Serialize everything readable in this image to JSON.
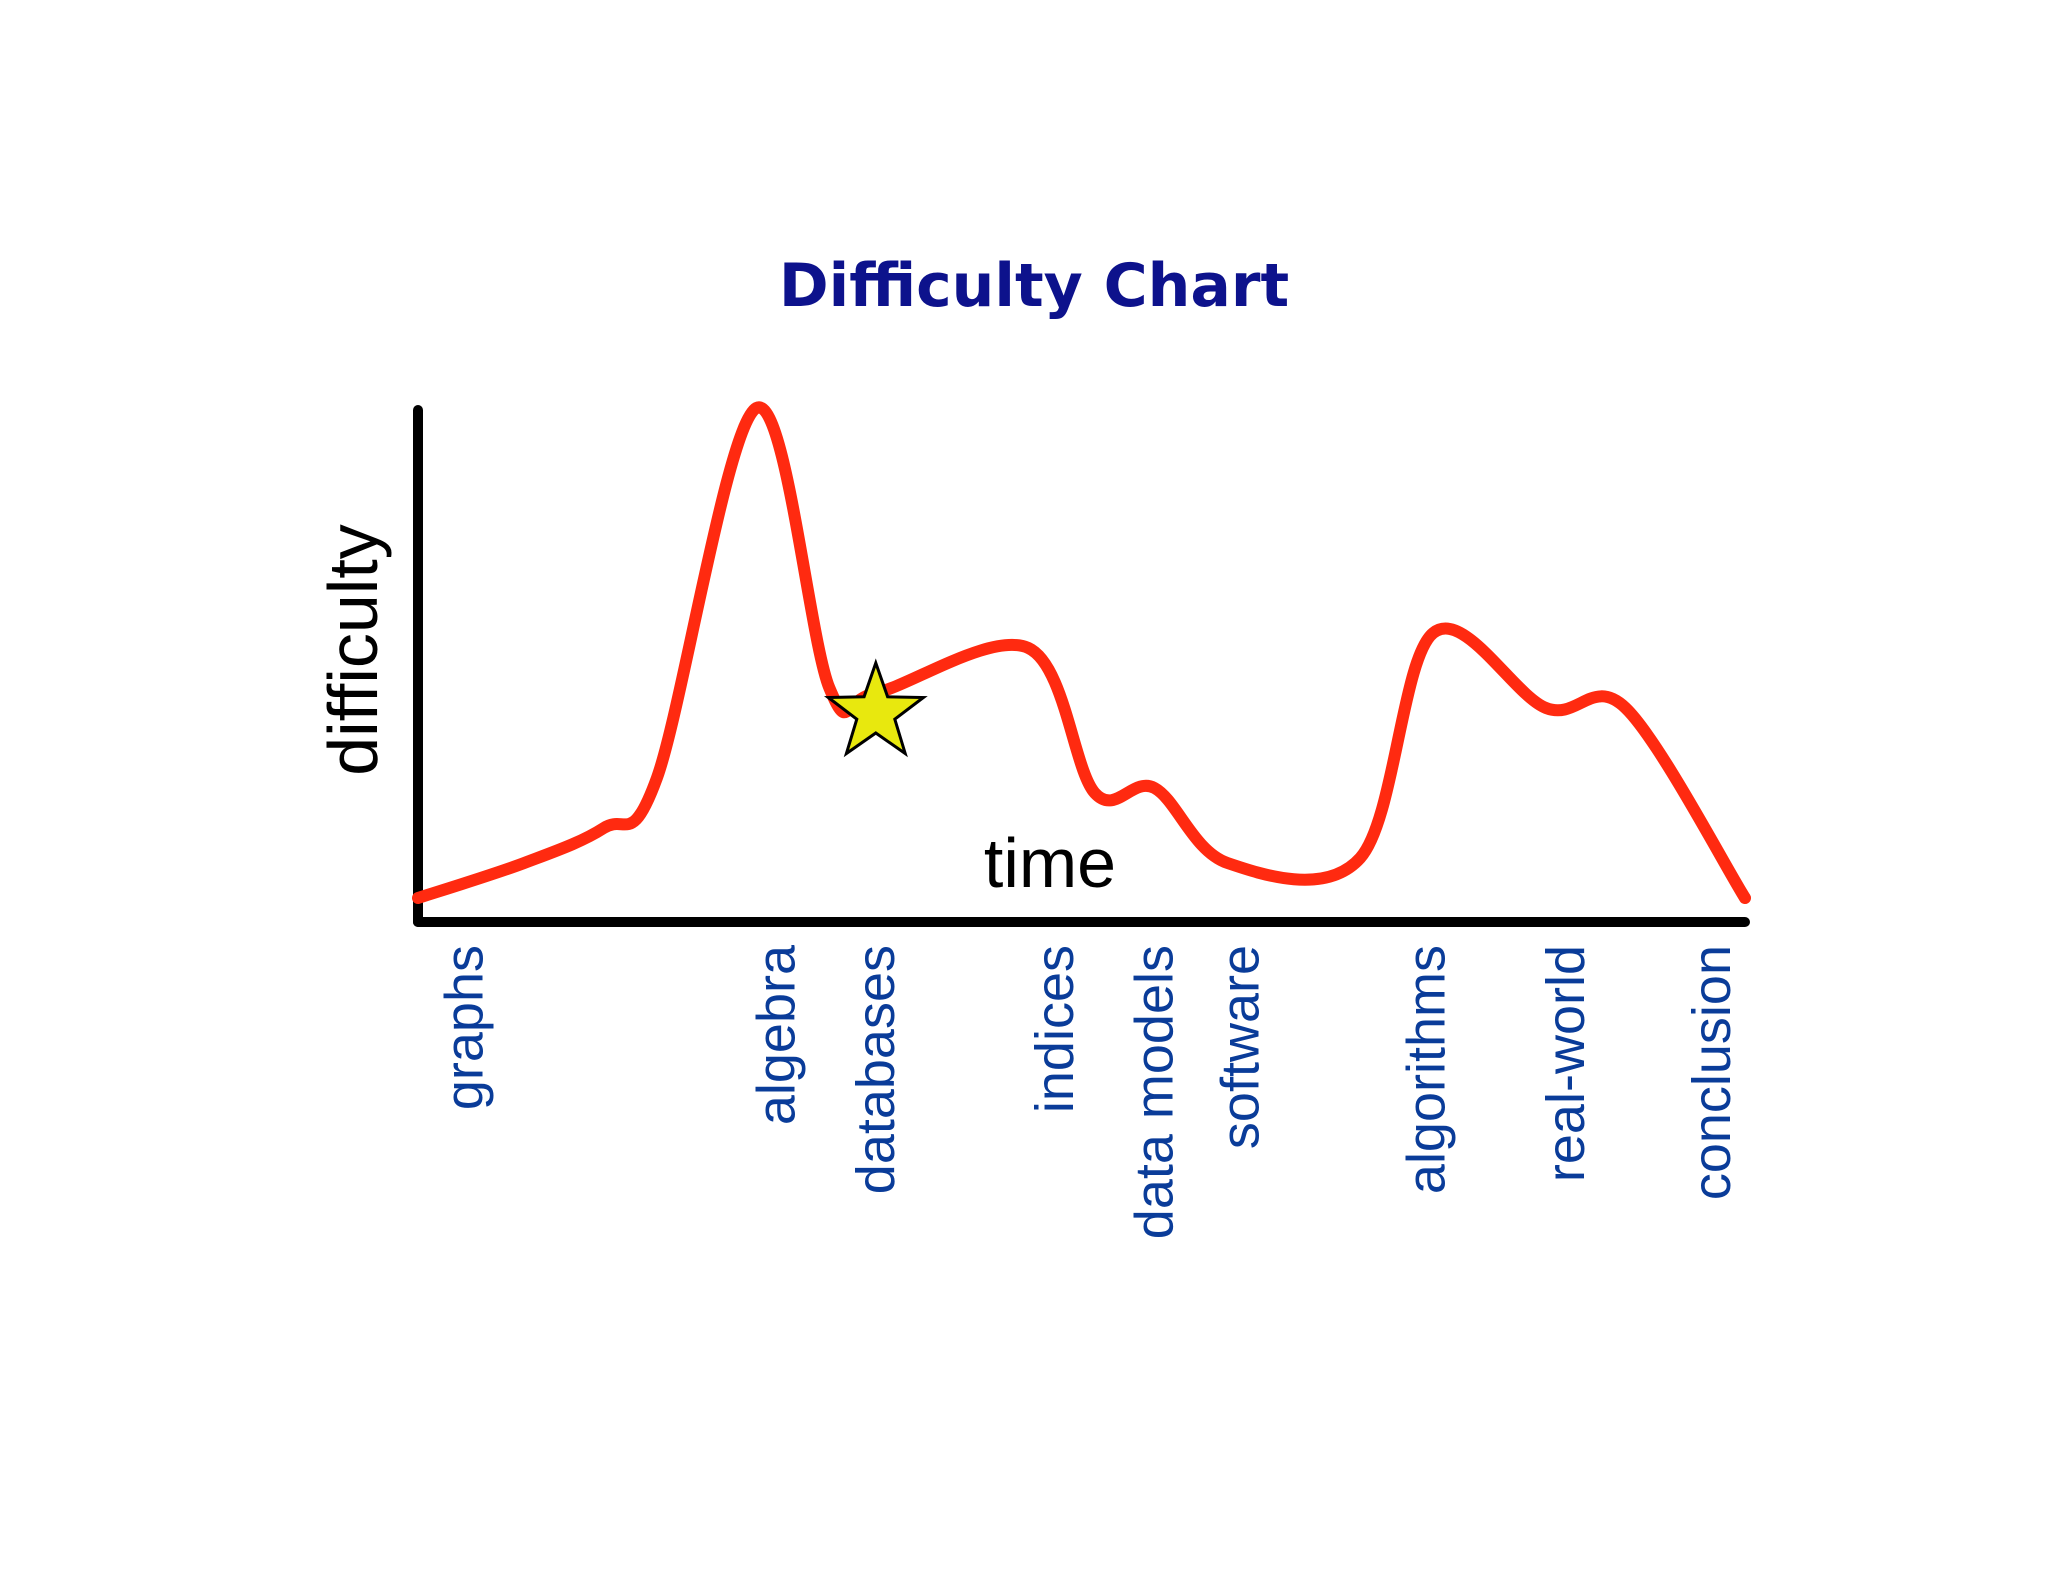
{
  "chart_data": {
    "type": "line",
    "title": "Difficulty Chart",
    "xlabel": "time",
    "ylabel": "difficulty",
    "grid": false,
    "legend": "none",
    "xlim": [
      0,
      100
    ],
    "ylim": [
      0,
      100
    ],
    "topics": [
      {
        "label": "graphs",
        "x": 3.5
      },
      {
        "label": "algebra",
        "x": 27
      },
      {
        "label": "databases",
        "x": 34.5
      },
      {
        "label": "indices",
        "x": 48
      },
      {
        "label": "data models",
        "x": 55.5
      },
      {
        "label": "software",
        "x": 62
      },
      {
        "label": "algorithms",
        "x": 76
      },
      {
        "label": "real-world",
        "x": 86.5
      },
      {
        "label": "conclusion",
        "x": 97.5
      }
    ],
    "series": [
      {
        "x": [
          0,
          8,
          14,
          18,
          25.5,
          31,
          34.5,
          46,
          51,
          55.5,
          61,
          71,
          76.5,
          85,
          91,
          100
        ],
        "y": [
          2,
          9,
          16,
          26,
          100,
          44,
          43,
          52,
          23,
          24,
          9,
          10,
          55,
          40,
          40,
          2
        ]
      }
    ],
    "marker": {
      "shape": "star",
      "x": 34.5,
      "y": 40
    }
  },
  "colors": {
    "title": "#0d128c",
    "axes": "#000000",
    "line": "#ff2a10",
    "tick_labels": "#0a3c99",
    "star_fill": "#e8e80e",
    "star_stroke": "#000000",
    "background": "#ffffff"
  }
}
